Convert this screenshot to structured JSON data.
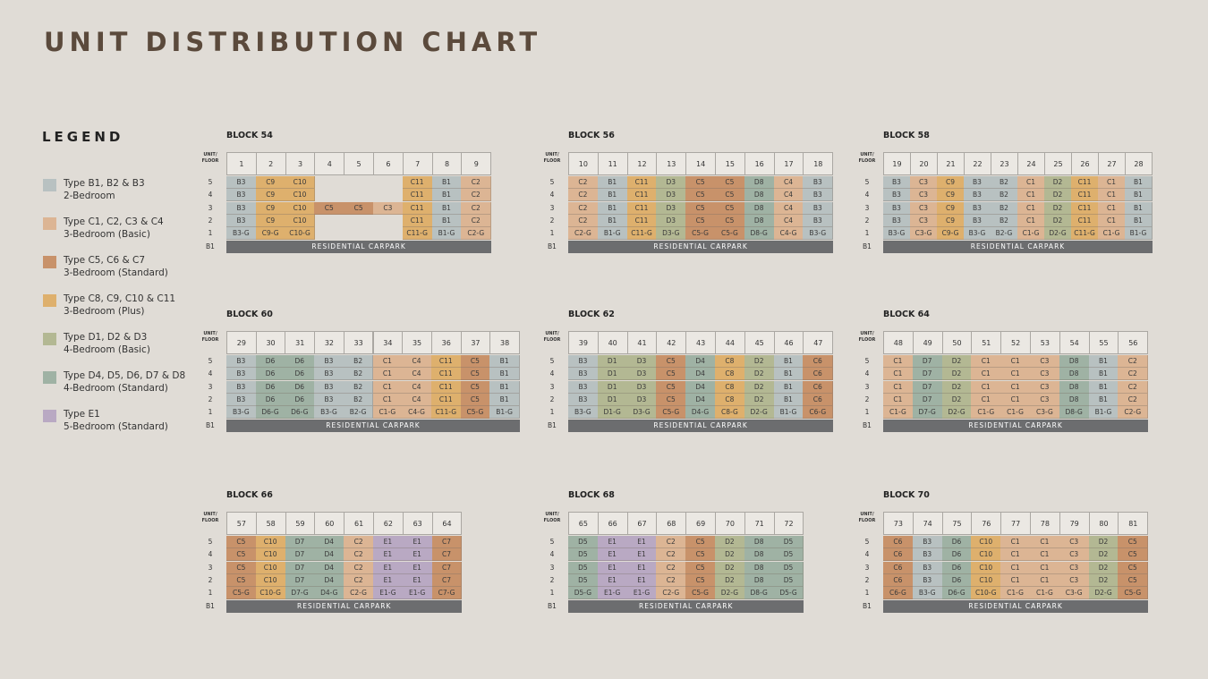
{
  "title": "UNIT DISTRIBUTION CHART",
  "legend": {
    "title": "LEGEND",
    "items": [
      {
        "key": "B",
        "types": "Type B1, B2 & B3",
        "desc": "2-Bedroom",
        "color": "#b8c1c1"
      },
      {
        "key": "CB",
        "types": "Type C1, C2, C3 & C4",
        "desc": "3-Bedroom (Basic)",
        "color": "#dcb594"
      },
      {
        "key": "CS",
        "types": "Type C5, C6 & C7",
        "desc": "3-Bedroom (Standard)",
        "color": "#c8926a"
      },
      {
        "key": "CP",
        "types": "Type C8, C9, C10 & C11",
        "desc": "3-Bedroom (Plus)",
        "color": "#deb06d"
      },
      {
        "key": "DB",
        "types": "Type D1, D2 & D3",
        "desc": "4-Bedroom (Basic)",
        "color": "#b3b893"
      },
      {
        "key": "DS",
        "types": "Type D4, D5, D6, D7 & D8",
        "desc": "4-Bedroom (Standard)",
        "color": "#9fb2a4"
      },
      {
        "key": "E",
        "types": "Type E1",
        "desc": "5-Bedroom (Standard)",
        "color": "#b9a9c3"
      }
    ]
  },
  "labels": {
    "unit_floor_1": "UNIT/",
    "unit_floor_2": "FLOOR",
    "floors": [
      "5",
      "4",
      "3",
      "2",
      "1",
      "B1"
    ],
    "carpark": "RESIDENTIAL CARPARK"
  },
  "blocks": [
    {
      "name": "BLOCK 54",
      "units": [
        [
          "1",
          "B3"
        ],
        [
          "2",
          "C9"
        ],
        [
          "3",
          "C10"
        ],
        [
          "4",
          "C5",
          3
        ],
        [
          "5",
          "C5",
          3
        ],
        [
          "6",
          "C3",
          3
        ],
        [
          "7",
          "C11"
        ],
        [
          "8",
          "B1"
        ],
        [
          "9",
          "C2"
        ]
      ]
    },
    {
      "name": "BLOCK 56",
      "units": [
        [
          "10",
          "C2"
        ],
        [
          "11",
          "B1"
        ],
        [
          "12",
          "C11"
        ],
        [
          "13",
          "D3"
        ],
        [
          "14",
          "C5"
        ],
        [
          "15",
          "C5"
        ],
        [
          "16",
          "D8"
        ],
        [
          "17",
          "C4"
        ],
        [
          "18",
          "B3"
        ]
      ]
    },
    {
      "name": "BLOCK 58",
      "units": [
        [
          "19",
          "B3"
        ],
        [
          "20",
          "C3"
        ],
        [
          "21",
          "C9"
        ],
        [
          "22",
          "B3"
        ],
        [
          "23",
          "B2"
        ],
        [
          "24",
          "C1"
        ],
        [
          "25",
          "D2"
        ],
        [
          "26",
          "C11"
        ],
        [
          "27",
          "C1"
        ],
        [
          "28",
          "B1"
        ]
      ]
    },
    {
      "name": "BLOCK 60",
      "units": [
        [
          "29",
          "B3"
        ],
        [
          "30",
          "D6"
        ],
        [
          "31",
          "D6"
        ],
        [
          "32",
          "B3"
        ],
        [
          "33",
          "B2"
        ],
        [
          "34",
          "C1"
        ],
        [
          "35",
          "C4"
        ],
        [
          "36",
          "C11"
        ],
        [
          "37",
          "C5"
        ],
        [
          "38",
          "B1"
        ]
      ]
    },
    {
      "name": "BLOCK 62",
      "units": [
        [
          "39",
          "B3"
        ],
        [
          "40",
          "D1"
        ],
        [
          "41",
          "D3"
        ],
        [
          "42",
          "C5"
        ],
        [
          "43",
          "D4"
        ],
        [
          "44",
          "C8"
        ],
        [
          "45",
          "D2"
        ],
        [
          "46",
          "B1"
        ],
        [
          "47",
          "C6"
        ]
      ]
    },
    {
      "name": "BLOCK 64",
      "units": [
        [
          "48",
          "C1"
        ],
        [
          "49",
          "D7"
        ],
        [
          "50",
          "D2"
        ],
        [
          "51",
          "C1"
        ],
        [
          "52",
          "C1"
        ],
        [
          "53",
          "C3"
        ],
        [
          "54",
          "D8"
        ],
        [
          "55",
          "B1"
        ],
        [
          "56",
          "C2"
        ]
      ]
    },
    {
      "name": "BLOCK 66",
      "units": [
        [
          "57",
          "C5"
        ],
        [
          "58",
          "C10"
        ],
        [
          "59",
          "D7"
        ],
        [
          "60",
          "D4"
        ],
        [
          "61",
          "C2"
        ],
        [
          "62",
          "E1"
        ],
        [
          "63",
          "E1"
        ],
        [
          "64",
          "C7"
        ]
      ]
    },
    {
      "name": "BLOCK 68",
      "units": [
        [
          "65",
          "D5"
        ],
        [
          "66",
          "E1"
        ],
        [
          "67",
          "E1"
        ],
        [
          "68",
          "C2"
        ],
        [
          "69",
          "C5"
        ],
        [
          "70",
          "D2"
        ],
        [
          "71",
          "D8"
        ],
        [
          "72",
          "D5"
        ]
      ]
    },
    {
      "name": "BLOCK 70",
      "units": [
        [
          "73",
          "C6"
        ],
        [
          "74",
          "B3"
        ],
        [
          "75",
          "D6"
        ],
        [
          "76",
          "C10"
        ],
        [
          "77",
          "C1"
        ],
        [
          "78",
          "C1"
        ],
        [
          "79",
          "C3"
        ],
        [
          "80",
          "D2"
        ],
        [
          "81",
          "C5"
        ]
      ]
    }
  ]
}
